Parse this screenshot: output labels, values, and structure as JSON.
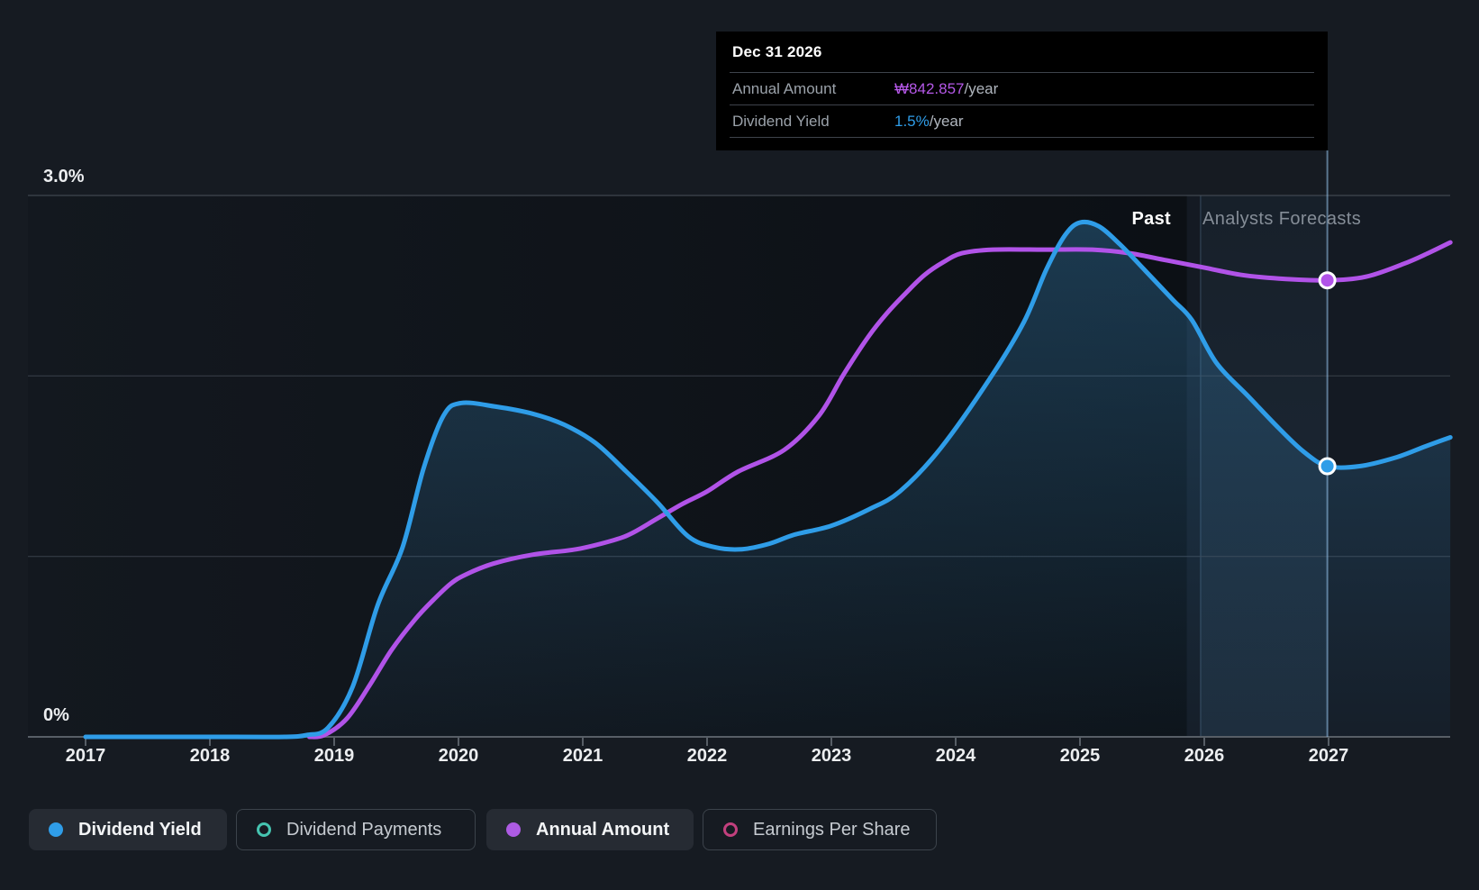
{
  "tooltip": {
    "date": "Dec 31 2026",
    "rows": [
      {
        "label": "Annual Amount",
        "value": "₩842.857",
        "suffix": "/year",
        "color": "#B558E8"
      },
      {
        "label": "Dividend Yield",
        "value": "1.5%",
        "suffix": "/year",
        "color": "#2F9DE8"
      }
    ]
  },
  "annotations": {
    "past_label": "Past",
    "forecast_label": "Analysts Forecasts"
  },
  "y_axis": {
    "top_label": "3.0%",
    "bottom_label": "0%"
  },
  "legend": [
    {
      "label": "Dividend Yield",
      "color": "#2F9DE8",
      "active": true
    },
    {
      "label": "Dividend Payments",
      "color": "#45C4B0",
      "active": false
    },
    {
      "label": "Annual Amount",
      "color": "#AD5BE3",
      "active": true
    },
    {
      "label": "Earnings Per Share",
      "color": "#C2407E",
      "active": false
    }
  ],
  "chart_data": {
    "type": "line",
    "title": "Dividend history and forecast",
    "xlabel": "",
    "ylabel": "Dividend Yield (%)",
    "ylim": [
      0,
      3.0
    ],
    "x_ticks": [
      2017,
      2018,
      2019,
      2020,
      2021,
      2022,
      2023,
      2024,
      2025,
      2026,
      2027
    ],
    "y_gridlines_pct": [
      3.0,
      2.0,
      1.0,
      0.0
    ],
    "grid": true,
    "legend_position": "bottom",
    "past_until": 2025.86,
    "highlight_band": [
      2025.97,
      2026.99
    ],
    "marker_year": 2026.99,
    "series": [
      {
        "name": "Dividend Yield",
        "color": "#2F9DE8",
        "unit": "%",
        "area": true,
        "marker": {
          "year": 2026.99,
          "pct": 1.5,
          "display": "1.5%/year"
        },
        "points": [
          [
            2017.0,
            0
          ],
          [
            2018.2,
            0
          ],
          [
            2018.6,
            0
          ],
          [
            2018.78,
            0.01
          ],
          [
            2018.95,
            0.05
          ],
          [
            2019.15,
            0.28
          ],
          [
            2019.35,
            0.73
          ],
          [
            2019.55,
            1.05
          ],
          [
            2019.72,
            1.49
          ],
          [
            2019.88,
            1.78
          ],
          [
            2020.02,
            1.85
          ],
          [
            2020.3,
            1.83
          ],
          [
            2020.6,
            1.79
          ],
          [
            2020.85,
            1.73
          ],
          [
            2021.1,
            1.63
          ],
          [
            2021.35,
            1.47
          ],
          [
            2021.6,
            1.3
          ],
          [
            2021.85,
            1.11
          ],
          [
            2022.07,
            1.05
          ],
          [
            2022.28,
            1.04
          ],
          [
            2022.5,
            1.07
          ],
          [
            2022.7,
            1.12
          ],
          [
            2023.0,
            1.17
          ],
          [
            2023.3,
            1.26
          ],
          [
            2023.55,
            1.36
          ],
          [
            2023.88,
            1.6
          ],
          [
            2024.28,
            1.99
          ],
          [
            2024.55,
            2.3
          ],
          [
            2024.73,
            2.59
          ],
          [
            2024.88,
            2.78
          ],
          [
            2025.0,
            2.85
          ],
          [
            2025.15,
            2.83
          ],
          [
            2025.32,
            2.73
          ],
          [
            2025.53,
            2.58
          ],
          [
            2025.75,
            2.42
          ],
          [
            2025.9,
            2.31
          ],
          [
            2026.1,
            2.07
          ],
          [
            2026.35,
            1.89
          ],
          [
            2026.6,
            1.71
          ],
          [
            2026.8,
            1.58
          ],
          [
            2026.99,
            1.5
          ],
          [
            2027.25,
            1.5
          ],
          [
            2027.55,
            1.55
          ],
          [
            2027.78,
            1.61
          ],
          [
            2027.98,
            1.66
          ]
        ]
      },
      {
        "name": "Annual Amount",
        "color": "#B153E8",
        "unit": "₩/year (plotted against yield axis)",
        "area": false,
        "marker": {
          "year": 2026.99,
          "pct": 2.53,
          "display": "₩842.857/year"
        },
        "points": [
          [
            2018.8,
            0
          ],
          [
            2018.92,
            0.01
          ],
          [
            2019.1,
            0.1
          ],
          [
            2019.28,
            0.28
          ],
          [
            2019.46,
            0.48
          ],
          [
            2019.65,
            0.65
          ],
          [
            2019.8,
            0.76
          ],
          [
            2019.94,
            0.85
          ],
          [
            2020.06,
            0.9
          ],
          [
            2020.28,
            0.96
          ],
          [
            2020.6,
            1.01
          ],
          [
            2020.95,
            1.04
          ],
          [
            2021.25,
            1.09
          ],
          [
            2021.4,
            1.13
          ],
          [
            2021.6,
            1.21
          ],
          [
            2021.8,
            1.29
          ],
          [
            2022.0,
            1.36
          ],
          [
            2022.25,
            1.47
          ],
          [
            2022.62,
            1.59
          ],
          [
            2022.9,
            1.78
          ],
          [
            2023.1,
            2.01
          ],
          [
            2023.3,
            2.22
          ],
          [
            2023.45,
            2.35
          ],
          [
            2023.6,
            2.46
          ],
          [
            2023.75,
            2.56
          ],
          [
            2023.9,
            2.63
          ],
          [
            2024.05,
            2.68
          ],
          [
            2024.3,
            2.7
          ],
          [
            2024.7,
            2.7
          ],
          [
            2025.1,
            2.7
          ],
          [
            2025.4,
            2.68
          ],
          [
            2025.7,
            2.64
          ],
          [
            2026.0,
            2.6
          ],
          [
            2026.3,
            2.56
          ],
          [
            2026.6,
            2.54
          ],
          [
            2026.99,
            2.53
          ],
          [
            2027.3,
            2.55
          ],
          [
            2027.6,
            2.62
          ],
          [
            2027.8,
            2.68
          ],
          [
            2027.98,
            2.74
          ]
        ]
      }
    ]
  }
}
